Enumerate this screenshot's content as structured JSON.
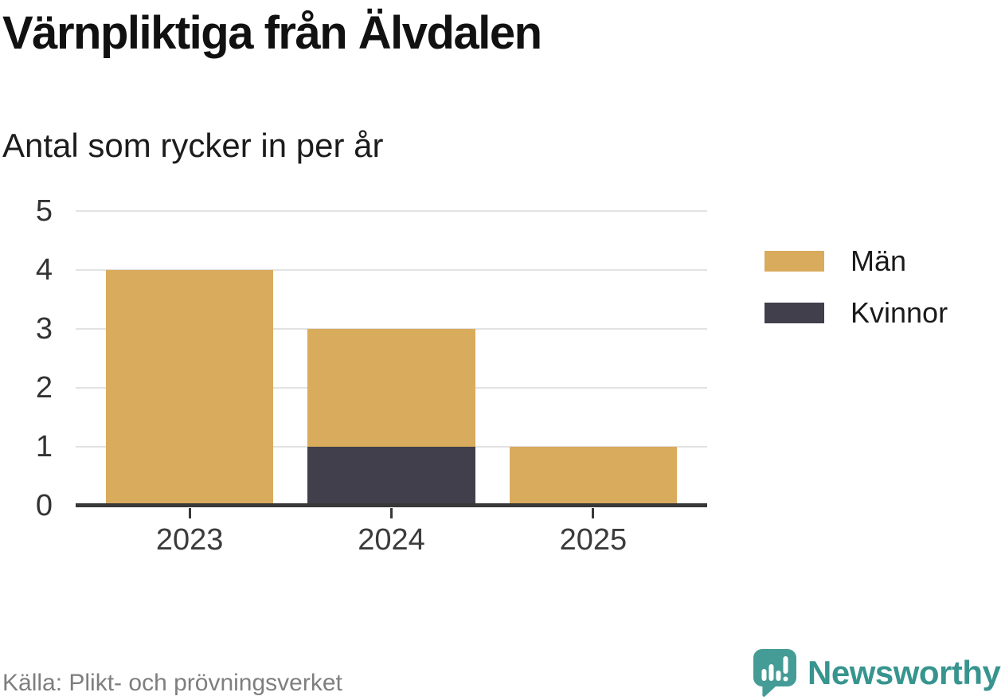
{
  "chart": {
    "title": "Värnpliktiga från Älvdalen",
    "subtitle": "Antal som rycker in per år",
    "source": "Källa: Plikt- och prövningsverket"
  },
  "chart_data": {
    "type": "bar",
    "stacked": true,
    "title": "Värnpliktiga från Älvdalen",
    "subtitle": "Antal som rycker in per år",
    "categories": [
      "2023",
      "2024",
      "2025"
    ],
    "series": [
      {
        "name": "Kvinnor",
        "color": "#413f4c",
        "values": [
          0,
          1,
          0
        ]
      },
      {
        "name": "Män",
        "color": "#d9ab5c",
        "values": [
          4,
          2,
          1
        ]
      }
    ],
    "stack_order": "bottom-to-top: Kvinnor, Män",
    "legend": [
      {
        "label": "Män",
        "color": "#d9ab5c"
      },
      {
        "label": "Kvinnor",
        "color": "#413f4c"
      }
    ],
    "legend_position": "right",
    "ylim": [
      0,
      5
    ],
    "yticks": [
      0,
      1,
      2,
      3,
      4,
      5
    ],
    "xlabel": "",
    "ylabel": "",
    "grid": "horizontal"
  },
  "branding": {
    "logo_text": "Newsworthy",
    "logo_icon": "newsworthy-speech-bubble-chart-icon",
    "logo_color": "#37948e",
    "logo_bubble_color": "#459c96"
  },
  "colors": {
    "man_bar": "#d9ab5c",
    "kvinnor_bar": "#413f4c",
    "gridline": "#e2e2e2",
    "axis": "#383838",
    "axis_text": "#333333",
    "title_text": "#111111",
    "source_text": "#7e7e7e",
    "background": "#ffffff"
  }
}
